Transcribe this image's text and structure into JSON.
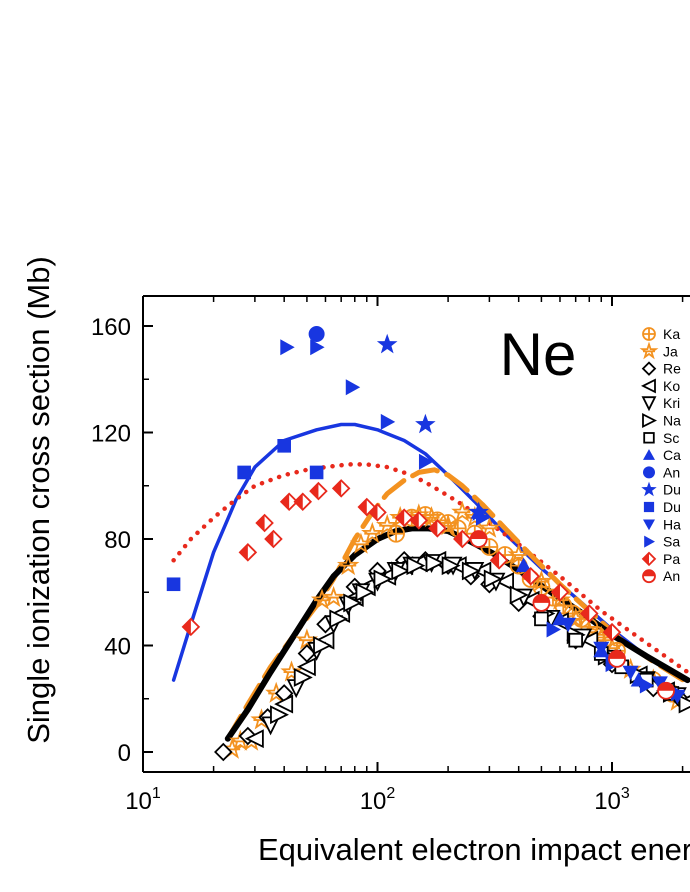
{
  "chart_data": {
    "type": "scatter",
    "annotation": "Ne",
    "xlabel": "Equivalent electron impact energ",
    "ylabel": "Single ionization cross section (Mb)",
    "xscale": "log",
    "xlim": [
      10,
      2200
    ],
    "ylim": [
      -4,
      170
    ],
    "x_ticks": [
      {
        "value": 10,
        "base": "10",
        "exp": "1"
      },
      {
        "value": 100,
        "base": "10",
        "exp": "2"
      },
      {
        "value": 1000,
        "base": "10",
        "exp": "3"
      }
    ],
    "y_ticks": [
      {
        "value": 0,
        "label": "0"
      },
      {
        "value": 40,
        "label": "40"
      },
      {
        "value": 80,
        "label": "80"
      },
      {
        "value": 120,
        "label": "120"
      },
      {
        "value": 160,
        "label": "160"
      }
    ],
    "legend_position": "right",
    "series": [
      {
        "name": "Ka",
        "marker": "circle-plus",
        "color": "#f39220",
        "points": [
          [
            120,
            82
          ],
          [
            140,
            88
          ],
          [
            160,
            89
          ],
          [
            180,
            87
          ],
          [
            200,
            86
          ],
          [
            220,
            84
          ],
          [
            260,
            82
          ],
          [
            300,
            77
          ],
          [
            350,
            74
          ],
          [
            400,
            70
          ],
          [
            450,
            65
          ],
          [
            500,
            62
          ],
          [
            560,
            58
          ],
          [
            620,
            55
          ],
          [
            680,
            52
          ],
          [
            740,
            50
          ],
          [
            800,
            47
          ],
          [
            860,
            44
          ],
          [
            920,
            42
          ],
          [
            1050,
            38
          ],
          [
            1500,
            27
          ],
          [
            1800,
            22
          ]
        ]
      },
      {
        "name": "Ja",
        "marker": "asterisk",
        "color": "#f39220",
        "points": [
          [
            24,
            1
          ],
          [
            26,
            4
          ],
          [
            29,
            4
          ],
          [
            32,
            12
          ],
          [
            37,
            22
          ],
          [
            43,
            30
          ],
          [
            50,
            42
          ],
          [
            58,
            57
          ],
          [
            65,
            58
          ],
          [
            75,
            70
          ],
          [
            85,
            78
          ],
          [
            95,
            82
          ],
          [
            110,
            85
          ],
          [
            125,
            88
          ],
          [
            150,
            89
          ],
          [
            170,
            88
          ],
          [
            200,
            85
          ],
          [
            230,
            90
          ],
          [
            260,
            88
          ],
          [
            300,
            84
          ],
          [
            400,
            74
          ],
          [
            500,
            64
          ],
          [
            600,
            57
          ],
          [
            700,
            50
          ],
          [
            800,
            45
          ],
          [
            900,
            43
          ],
          [
            1000,
            39
          ],
          [
            1200,
            31
          ],
          [
            1500,
            27
          ],
          [
            1900,
            19
          ]
        ]
      },
      {
        "name": "Re",
        "marker": "diamond-open",
        "color": "#000000",
        "points": [
          [
            22,
            0
          ],
          [
            28,
            6
          ],
          [
            34,
            13
          ],
          [
            40,
            22
          ],
          [
            50,
            37
          ],
          [
            60,
            48
          ],
          [
            80,
            62
          ],
          [
            100,
            68
          ],
          [
            130,
            72
          ],
          [
            160,
            72
          ],
          [
            200,
            70
          ],
          [
            250,
            66
          ],
          [
            300,
            63
          ],
          [
            400,
            56
          ],
          [
            500,
            51
          ],
          [
            700,
            42
          ],
          [
            1000,
            33
          ],
          [
            1500,
            24
          ],
          [
            2000,
            19
          ]
        ]
      },
      {
        "name": "Ko",
        "marker": "triangle-left-open",
        "color": "#000000",
        "points": [
          [
            30,
            5
          ],
          [
            40,
            18
          ],
          [
            50,
            32
          ],
          [
            60,
            42
          ],
          [
            70,
            52
          ],
          [
            80,
            58
          ],
          [
            90,
            62
          ],
          [
            110,
            66
          ],
          [
            130,
            70
          ],
          [
            150,
            71
          ],
          [
            180,
            72
          ],
          [
            220,
            70
          ],
          [
            280,
            68
          ],
          [
            350,
            64
          ],
          [
            450,
            57
          ],
          [
            600,
            49
          ],
          [
            800,
            42
          ],
          [
            1000,
            35
          ],
          [
            1300,
            29
          ],
          [
            1700,
            23
          ],
          [
            2100,
            19
          ]
        ]
      },
      {
        "name": "Kri",
        "marker": "triangle-down-open",
        "color": "#000000",
        "points": [
          [
            35,
            10
          ],
          [
            45,
            24
          ],
          [
            55,
            38
          ],
          [
            65,
            48
          ],
          [
            75,
            55
          ],
          [
            85,
            60
          ],
          [
            100,
            64
          ],
          [
            120,
            68
          ],
          [
            140,
            70
          ],
          [
            170,
            71
          ],
          [
            210,
            70
          ],
          [
            260,
            68
          ],
          [
            320,
            64
          ],
          [
            420,
            58
          ],
          [
            550,
            50
          ],
          [
            750,
            43
          ],
          [
            1000,
            35
          ],
          [
            1400,
            27
          ],
          [
            1900,
            21
          ]
        ]
      },
      {
        "name": "Na",
        "marker": "triangle-right-open",
        "color": "#000000",
        "points": [
          [
            38,
            14
          ],
          [
            48,
            28
          ],
          [
            58,
            40
          ],
          [
            68,
            50
          ],
          [
            78,
            56
          ],
          [
            88,
            60
          ],
          [
            105,
            65
          ],
          [
            125,
            68
          ],
          [
            145,
            70
          ],
          [
            175,
            71
          ],
          [
            205,
            70
          ],
          [
            250,
            68
          ],
          [
            310,
            65
          ],
          [
            400,
            59
          ],
          [
            520,
            52
          ],
          [
            700,
            44
          ],
          [
            950,
            36
          ],
          [
            1300,
            29
          ],
          [
            1800,
            22
          ],
          [
            2100,
            18
          ]
        ]
      },
      {
        "name": "Sc",
        "marker": "square-open",
        "color": "#000000",
        "points": [
          [
            500,
            50
          ],
          [
            700,
            42
          ],
          [
            900,
            37
          ],
          [
            1100,
            32
          ],
          [
            1400,
            27
          ],
          [
            1800,
            22
          ]
        ]
      },
      {
        "name": "Ca",
        "marker": "triangle-up",
        "color": "#1836e0",
        "points": [
          [
            270,
            90
          ],
          [
            420,
            70
          ],
          [
            600,
            50
          ],
          [
            900,
            38
          ],
          [
            1300,
            27
          ]
        ]
      },
      {
        "name": "An",
        "marker": "circle",
        "color": "#1836e0",
        "points": [
          [
            55,
            157
          ]
        ]
      },
      {
        "name": "Du",
        "marker": "star",
        "color": "#1836e0",
        "points": [
          [
            110,
            153
          ],
          [
            160,
            123
          ],
          [
            270,
            90
          ]
        ]
      },
      {
        "name": "Du",
        "marker": "square",
        "color": "#1836e0",
        "points": [
          [
            13.5,
            63
          ],
          [
            27,
            105
          ],
          [
            40,
            115
          ],
          [
            55,
            105
          ]
        ]
      },
      {
        "name": "Ha",
        "marker": "triangle-down",
        "color": "#1836e0",
        "points": [
          [
            650,
            48
          ],
          [
            900,
            39
          ],
          [
            1200,
            30
          ],
          [
            1600,
            26
          ],
          [
            1900,
            21
          ]
        ]
      },
      {
        "name": "Sa",
        "marker": "triangle-right",
        "color": "#1836e0",
        "points": [
          [
            41,
            152
          ],
          [
            55,
            152
          ],
          [
            78,
            137
          ],
          [
            110,
            124
          ],
          [
            160,
            109
          ],
          [
            280,
            88
          ],
          [
            560,
            46
          ],
          [
            1000,
            33
          ],
          [
            1400,
            25
          ],
          [
            1900,
            22
          ]
        ]
      },
      {
        "name": "Pa",
        "marker": "diamond-half",
        "color": "#e8291c",
        "points": [
          [
            16,
            47
          ],
          [
            28,
            75
          ],
          [
            33,
            86
          ],
          [
            36,
            80
          ],
          [
            42,
            94
          ],
          [
            48,
            94
          ],
          [
            56,
            98
          ],
          [
            70,
            99
          ],
          [
            90,
            92
          ],
          [
            100,
            90
          ],
          [
            130,
            88
          ],
          [
            150,
            87
          ],
          [
            180,
            84
          ],
          [
            230,
            80
          ],
          [
            330,
            72
          ],
          [
            450,
            66
          ],
          [
            600,
            60
          ],
          [
            800,
            52
          ],
          [
            1000,
            45
          ]
        ]
      },
      {
        "name": "An",
        "marker": "circle-half",
        "color": "#e8291c",
        "points": [
          [
            270,
            80
          ],
          [
            500,
            56
          ],
          [
            1050,
            35
          ],
          [
            1700,
            23
          ]
        ]
      }
    ],
    "curves": [
      {
        "name": "blue-solid",
        "color": "#1836e0",
        "style": "solid",
        "points": [
          [
            13.5,
            27
          ],
          [
            16,
            48
          ],
          [
            20,
            75
          ],
          [
            25,
            95
          ],
          [
            30,
            107
          ],
          [
            40,
            117
          ],
          [
            55,
            121
          ],
          [
            70,
            123
          ],
          [
            80,
            123
          ],
          [
            100,
            121
          ],
          [
            130,
            117
          ],
          [
            160,
            112
          ],
          [
            200,
            104
          ],
          [
            260,
            94
          ],
          [
            350,
            82
          ],
          [
            500,
            69
          ],
          [
            700,
            58
          ],
          [
            1000,
            46
          ],
          [
            1500,
            34
          ],
          [
            2100,
            27
          ]
        ]
      },
      {
        "name": "red-dotted",
        "color": "#e8291c",
        "style": "dotted",
        "points": [
          [
            13.5,
            72
          ],
          [
            16,
            80
          ],
          [
            20,
            88
          ],
          [
            25,
            95
          ],
          [
            30,
            100
          ],
          [
            40,
            104
          ],
          [
            50,
            106
          ],
          [
            60,
            107
          ],
          [
            75,
            108
          ],
          [
            90,
            108
          ],
          [
            110,
            107
          ],
          [
            140,
            104
          ],
          [
            170,
            100
          ],
          [
            220,
            94
          ],
          [
            300,
            86
          ],
          [
            400,
            78
          ],
          [
            600,
            66
          ],
          [
            900,
            53
          ],
          [
            1300,
            43
          ],
          [
            2100,
            30
          ]
        ]
      },
      {
        "name": "orange-dashed",
        "color": "#f39220",
        "style": "dashed",
        "points": [
          [
            23,
            5
          ],
          [
            28,
            18
          ],
          [
            35,
            32
          ],
          [
            45,
            45
          ],
          [
            55,
            55
          ],
          [
            65,
            65
          ],
          [
            80,
            80
          ],
          [
            95,
            90
          ],
          [
            110,
            97
          ],
          [
            130,
            102
          ],
          [
            150,
            105
          ],
          [
            175,
            106
          ],
          [
            200,
            104
          ],
          [
            230,
            100
          ],
          [
            280,
            93
          ],
          [
            350,
            84
          ],
          [
            450,
            74
          ],
          [
            600,
            63
          ],
          [
            800,
            53
          ],
          [
            1100,
            42
          ],
          [
            1500,
            34
          ],
          [
            2100,
            26
          ]
        ]
      },
      {
        "name": "black-solid",
        "color": "#000000",
        "style": "thick",
        "points": [
          [
            23,
            5
          ],
          [
            28,
            16
          ],
          [
            35,
            30
          ],
          [
            45,
            45
          ],
          [
            55,
            57
          ],
          [
            65,
            66
          ],
          [
            80,
            74
          ],
          [
            100,
            80
          ],
          [
            120,
            83
          ],
          [
            140,
            84
          ],
          [
            165,
            84
          ],
          [
            200,
            83
          ],
          [
            250,
            79
          ],
          [
            320,
            74
          ],
          [
            420,
            67
          ],
          [
            550,
            60
          ],
          [
            750,
            52
          ],
          [
            1000,
            44
          ],
          [
            1400,
            36
          ],
          [
            2100,
            27
          ]
        ]
      }
    ]
  }
}
